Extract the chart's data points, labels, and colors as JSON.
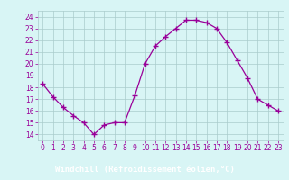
{
  "x": [
    0,
    1,
    2,
    3,
    4,
    5,
    6,
    7,
    8,
    9,
    10,
    11,
    12,
    13,
    14,
    15,
    16,
    17,
    18,
    19,
    20,
    21,
    22,
    23
  ],
  "y": [
    18.3,
    17.2,
    16.3,
    15.6,
    15.0,
    14.0,
    14.8,
    15.0,
    15.0,
    17.3,
    20.0,
    21.5,
    22.3,
    23.0,
    23.7,
    23.7,
    23.5,
    23.0,
    21.8,
    20.3,
    18.8,
    17.0,
    16.5,
    16.0
  ],
  "line_color": "#990099",
  "marker": "+",
  "marker_size": 4,
  "marker_linewidth": 1.0,
  "bg_color": "#d8f5f5",
  "grid_color": "#aacccc",
  "xlabel": "Windchill (Refroidissement éolien,°C)",
  "xlabel_color": "#ffffff",
  "xlabel_bg": "#880088",
  "ylabel_ticks": [
    14,
    15,
    16,
    17,
    18,
    19,
    20,
    21,
    22,
    23,
    24
  ],
  "xlim": [
    -0.5,
    23.5
  ],
  "ylim": [
    13.5,
    24.5
  ],
  "xtick_labels": [
    "0",
    "1",
    "2",
    "3",
    "4",
    "5",
    "6",
    "7",
    "8",
    "9",
    "10",
    "11",
    "12",
    "13",
    "14",
    "15",
    "16",
    "17",
    "18",
    "19",
    "20",
    "21",
    "22",
    "23"
  ],
  "tick_color": "#990099",
  "tick_fontsize": 5.5,
  "xlabel_fontsize": 6.5,
  "spine_color": "#aacccc"
}
